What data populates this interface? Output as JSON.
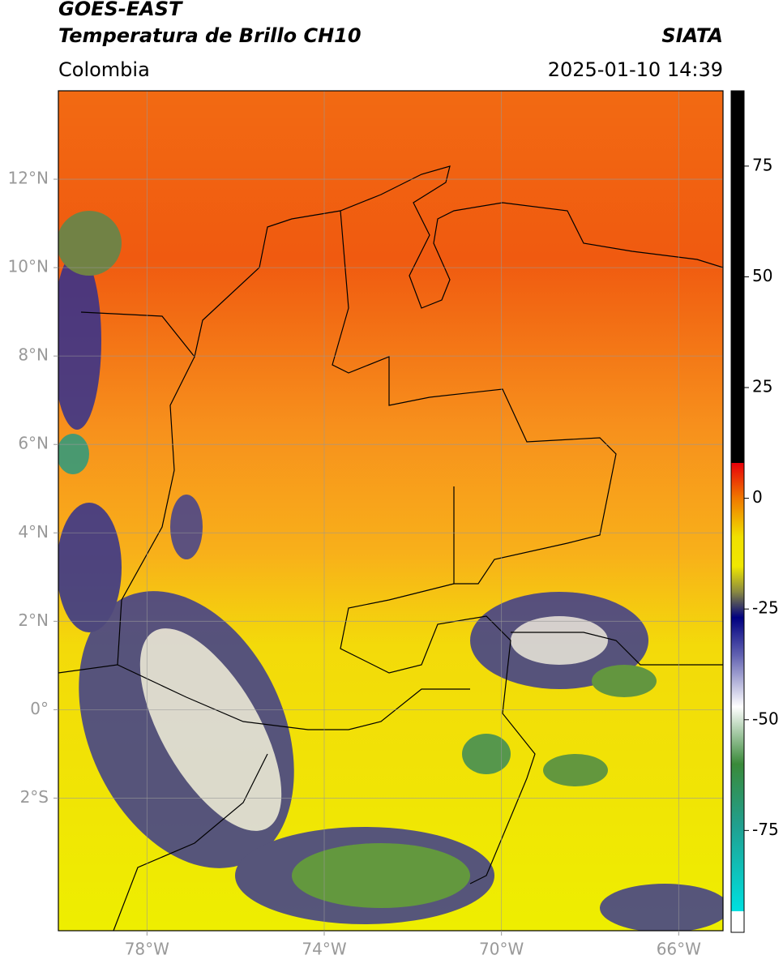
{
  "header": {
    "title": "GOES-EAST",
    "subtitle": "Temperatura de Brillo CH10",
    "source": "SIATA",
    "region": "Colombia",
    "datetime": "2025-01-10 14:39"
  },
  "map": {
    "xlim": [
      -80,
      -65
    ],
    "ylim": [
      -5,
      14
    ],
    "grid": true,
    "xticks": [
      {
        "value": -78,
        "label": "78°W"
      },
      {
        "value": -74,
        "label": "74°W"
      },
      {
        "value": -70,
        "label": "70°W"
      },
      {
        "value": -66,
        "label": "66°W"
      }
    ],
    "yticks": [
      {
        "value": 12,
        "label": "12°N"
      },
      {
        "value": 10,
        "label": "10°N"
      },
      {
        "value": 8,
        "label": "8°N"
      },
      {
        "value": 6,
        "label": "6°N"
      },
      {
        "value": 4,
        "label": "4°N"
      },
      {
        "value": 2,
        "label": "2°N"
      },
      {
        "value": 0,
        "label": "0°"
      },
      {
        "value": -2,
        "label": "2°S"
      }
    ]
  },
  "colorbar": {
    "ylim": [
      -98,
      92
    ],
    "yticks": [
      75,
      50,
      25,
      0,
      -25,
      -50,
      -75
    ]
  }
}
